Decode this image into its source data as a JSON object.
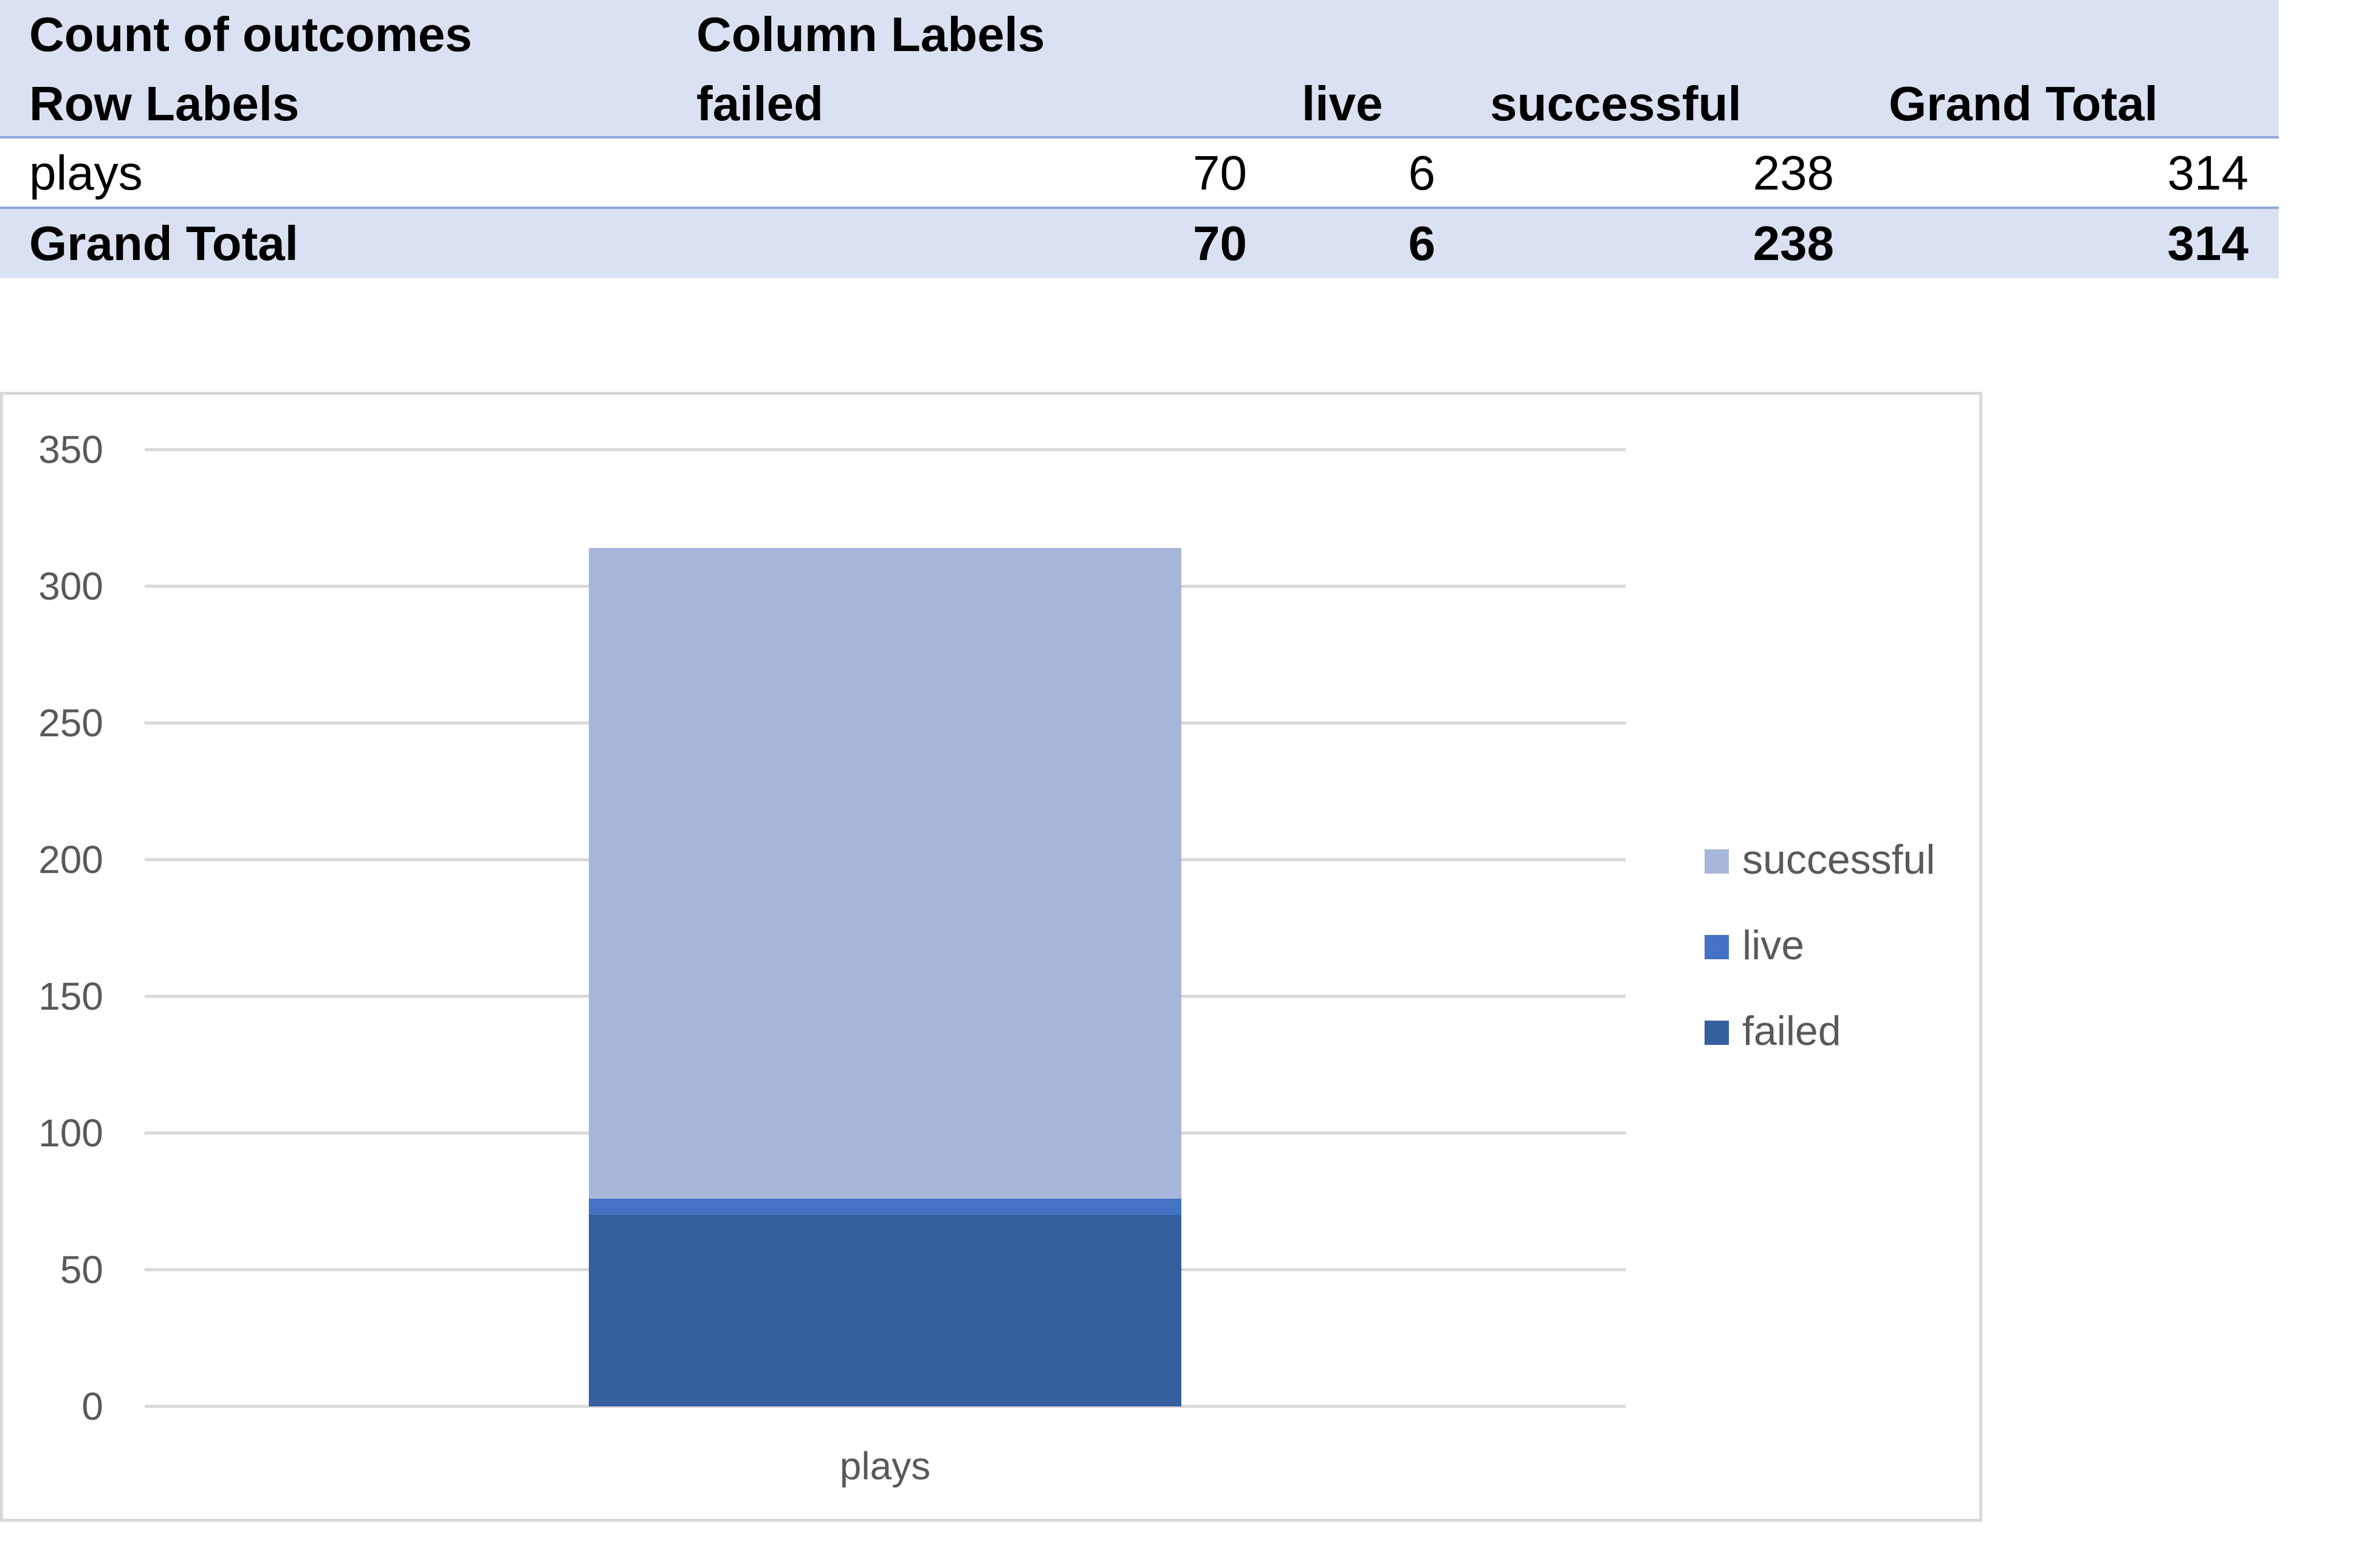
{
  "pivot": {
    "header1": {
      "label": "Count of outcomes",
      "columns_label": "Column Labels"
    },
    "header2": {
      "row_labels": "Row Labels",
      "columns": [
        "failed",
        "live",
        "successful",
        "Grand Total"
      ]
    },
    "rows": [
      {
        "label": "plays",
        "values": [
          "70",
          "6",
          "238",
          "314"
        ]
      }
    ],
    "grand_total": {
      "label": "Grand Total",
      "values": [
        "70",
        "6",
        "238",
        "314"
      ]
    }
  },
  "chart_data": {
    "type": "bar",
    "stacked": true,
    "categories": [
      "plays"
    ],
    "series": [
      {
        "name": "failed",
        "values": [
          70
        ],
        "color": "#365f9f"
      },
      {
        "name": "live",
        "values": [
          6
        ],
        "color": "#4472c4"
      },
      {
        "name": "successful",
        "values": [
          238
        ],
        "color": "#a7b6da"
      }
    ],
    "y_ticks": [
      "0",
      "50",
      "100",
      "150",
      "200",
      "250",
      "300",
      "350"
    ],
    "ylim": [
      0,
      350
    ],
    "grid": true,
    "legend_position": "right",
    "legend_order": [
      "successful",
      "live",
      "failed"
    ]
  }
}
